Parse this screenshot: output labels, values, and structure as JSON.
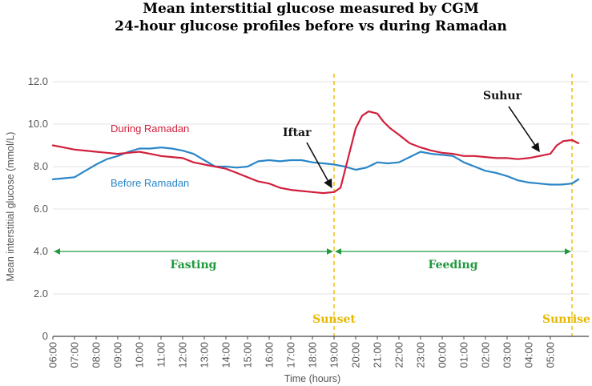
{
  "chart_data": {
    "type": "line",
    "title": "Mean interstitial glucose measured by CGM",
    "subtitle": "24-hour glucose profiles before vs during Ramadan",
    "xlabel": "Time (hours)",
    "ylabel": "Mean interstitial glucose (mmol/L)",
    "ylim": [
      0,
      12
    ],
    "y_ticks": [
      "0",
      "2.0",
      "4.0",
      "6.0",
      "8.0",
      "10.0",
      "12.0"
    ],
    "x_ticks": [
      "06:00",
      "07:00",
      "08:00",
      "09:00",
      "10:00",
      "11:00",
      "12:00",
      "13:00",
      "14:00",
      "15:00",
      "16:00",
      "17:00",
      "18:00",
      "19:00",
      "20:00",
      "21:00",
      "22:00",
      "23:00",
      "00:00",
      "01:00",
      "02:00",
      "03:00",
      "04:00",
      "05:00"
    ],
    "x_unit": "hours since 06:00",
    "xlim": [
      0,
      24.3
    ],
    "grid": "horizontal",
    "series": [
      {
        "name": "During Ramadan",
        "color": "#d21f3c",
        "x": [
          0,
          0.5,
          1,
          1.5,
          2,
          2.5,
          3,
          3.5,
          4,
          4.5,
          5,
          5.5,
          6,
          6.5,
          7,
          7.5,
          8,
          8.5,
          9,
          9.5,
          10,
          10.5,
          11,
          11.5,
          12,
          12.5,
          13,
          13.3,
          13.7,
          14,
          14.3,
          14.6,
          15,
          15.3,
          15.6,
          16,
          16.5,
          17,
          17.5,
          18,
          18.5,
          19,
          19.5,
          20,
          20.5,
          21,
          21.5,
          22,
          22.5,
          23,
          23.3,
          23.6,
          24,
          24.3
        ],
        "values": [
          9.0,
          8.9,
          8.8,
          8.75,
          8.7,
          8.65,
          8.6,
          8.65,
          8.7,
          8.6,
          8.5,
          8.45,
          8.4,
          8.2,
          8.1,
          8.0,
          7.9,
          7.7,
          7.5,
          7.3,
          7.2,
          7.0,
          6.9,
          6.85,
          6.8,
          6.75,
          6.8,
          7.0,
          8.6,
          9.8,
          10.4,
          10.6,
          10.5,
          10.1,
          9.8,
          9.5,
          9.1,
          8.9,
          8.75,
          8.65,
          8.6,
          8.5,
          8.5,
          8.45,
          8.4,
          8.4,
          8.35,
          8.4,
          8.5,
          8.6,
          9.0,
          9.2,
          9.25,
          9.1
        ]
      },
      {
        "name": "Before Ramadan",
        "color": "#2a86c8",
        "x": [
          0,
          0.5,
          1,
          1.5,
          2,
          2.5,
          3,
          3.5,
          4,
          4.5,
          5,
          5.5,
          6,
          6.5,
          7,
          7.5,
          8,
          8.5,
          9,
          9.5,
          10,
          10.5,
          11,
          11.5,
          12,
          12.5,
          13,
          13.5,
          14,
          14.5,
          15,
          15.5,
          16,
          16.5,
          17,
          17.5,
          18,
          18.5,
          19,
          19.5,
          20,
          20.5,
          21,
          21.5,
          22,
          22.5,
          23,
          23.5,
          24,
          24.3
        ],
        "values": [
          7.4,
          7.45,
          7.5,
          7.8,
          8.1,
          8.35,
          8.5,
          8.7,
          8.85,
          8.85,
          8.9,
          8.85,
          8.75,
          8.6,
          8.3,
          8.0,
          8.0,
          7.95,
          8.0,
          8.25,
          8.3,
          8.25,
          8.3,
          8.3,
          8.2,
          8.15,
          8.1,
          8.0,
          7.85,
          7.95,
          8.2,
          8.15,
          8.2,
          8.45,
          8.7,
          8.6,
          8.55,
          8.5,
          8.2,
          8.0,
          7.8,
          7.7,
          7.55,
          7.35,
          7.25,
          7.2,
          7.15,
          7.15,
          7.2,
          7.4
        ]
      }
    ],
    "vlines": [
      {
        "x": 13,
        "label": "Sunset",
        "color": "#f0c419"
      },
      {
        "x": 24,
        "label": "Sunrise",
        "color": "#f0c419"
      }
    ],
    "ranges": [
      {
        "label": "Fasting",
        "from": 0,
        "to": 13,
        "y": 4.0,
        "color": "#1e9a3c"
      },
      {
        "label": "Feeding",
        "from": 13,
        "to": 24,
        "y": 4.0,
        "color": "#1e9a3c"
      }
    ],
    "annotations": [
      {
        "label": "Iftar",
        "point_x": 13.0,
        "point_y": 6.9
      },
      {
        "label": "Suhur",
        "point_x": 22.6,
        "point_y": 8.6
      }
    ]
  }
}
